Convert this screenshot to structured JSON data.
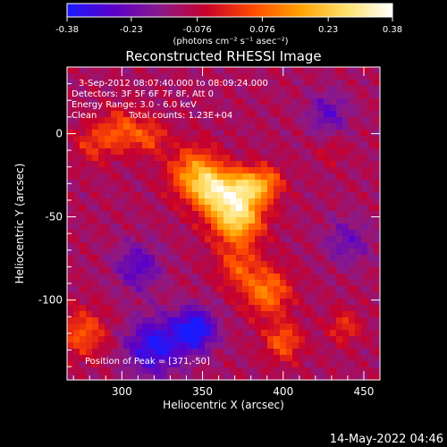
{
  "colorbar": {
    "ticks": [
      "-0.38",
      "-0.23",
      "-0.076",
      "0.076",
      "0.23",
      "0.38"
    ],
    "tick_values": [
      -0.38,
      -0.23,
      -0.076,
      0.076,
      0.23,
      0.38
    ],
    "unit_label": "(photons cm⁻² s⁻¹ asec⁻²)",
    "colors": [
      "#1a1aff",
      "#5a00c8",
      "#8a1a8a",
      "#c8002a",
      "#ff4a00",
      "#ffa000",
      "#ffe06a",
      "#ffffff"
    ]
  },
  "plot": {
    "title": "Reconstructed RHESSI Image",
    "info_line1": "3-Sep-2012 08:07:40.000 to 08:09:24.000",
    "info_line2": "Detectors: 3F 5F 6F 7F 8F, Att 0",
    "info_line3": "Energy Range: 3.0 - 6.0 keV",
    "info_line4a": "Clean",
    "info_line4b": "Total counts: 1.23E+04",
    "peak_label": "Position of Peak = [371,-50]",
    "xlabel": "Heliocentric X (arcsec)",
    "ylabel": "Heliocentric Y (arcsec)"
  },
  "timestamp": "14-May-2022 04:46",
  "chart_data": {
    "type": "heatmap",
    "title": "Reconstructed RHESSI Image",
    "xlabel": "Heliocentric X (arcsec)",
    "ylabel": "Heliocentric Y (arcsec)",
    "xlim": [
      266,
      460
    ],
    "ylim": [
      -148,
      40
    ],
    "x_ticks": [
      300,
      350,
      400,
      450
    ],
    "y_ticks": [
      0,
      -50,
      -100
    ],
    "color_range": [
      -0.38,
      0.38
    ],
    "peak": {
      "x": 371,
      "y": -50
    },
    "sources": [
      {
        "x": 371,
        "y": -50,
        "amplitude": 0.38,
        "sigma": 11
      },
      {
        "x": 357,
        "y": -34,
        "amplitude": 0.29,
        "sigma": 9
      },
      {
        "x": 345,
        "y": -24,
        "amplitude": 0.25,
        "sigma": 11
      },
      {
        "x": 376,
        "y": -32,
        "amplitude": 0.26,
        "sigma": 8
      },
      {
        "x": 390,
        "y": -30,
        "amplitude": 0.2,
        "sigma": 7
      },
      {
        "x": 300,
        "y": 2,
        "amplitude": 0.17,
        "sigma": 9
      },
      {
        "x": 318,
        "y": -2,
        "amplitude": 0.14,
        "sigma": 7
      },
      {
        "x": 282,
        "y": -6,
        "amplitude": 0.12,
        "sigma": 8
      },
      {
        "x": 390,
        "y": -95,
        "amplitude": 0.22,
        "sigma": 10
      },
      {
        "x": 400,
        "y": -125,
        "amplitude": 0.18,
        "sigma": 8
      },
      {
        "x": 372,
        "y": -80,
        "amplitude": 0.15,
        "sigma": 9
      },
      {
        "x": 276,
        "y": -120,
        "amplitude": 0.17,
        "sigma": 10
      },
      {
        "x": 438,
        "y": -116,
        "amplitude": 0.12,
        "sigma": 7
      },
      {
        "x": 430,
        "y": -10,
        "amplitude": 0.06,
        "sigma": 6
      },
      {
        "x": 320,
        "y": -128,
        "amplitude": -0.25,
        "sigma": 12
      },
      {
        "x": 345,
        "y": -118,
        "amplitude": -0.3,
        "sigma": 9
      },
      {
        "x": 310,
        "y": -80,
        "amplitude": -0.16,
        "sigma": 10
      },
      {
        "x": 428,
        "y": 12,
        "amplitude": -0.14,
        "sigma": 9
      },
      {
        "x": 440,
        "y": -65,
        "amplitude": -0.12,
        "sigma": 10
      }
    ]
  }
}
